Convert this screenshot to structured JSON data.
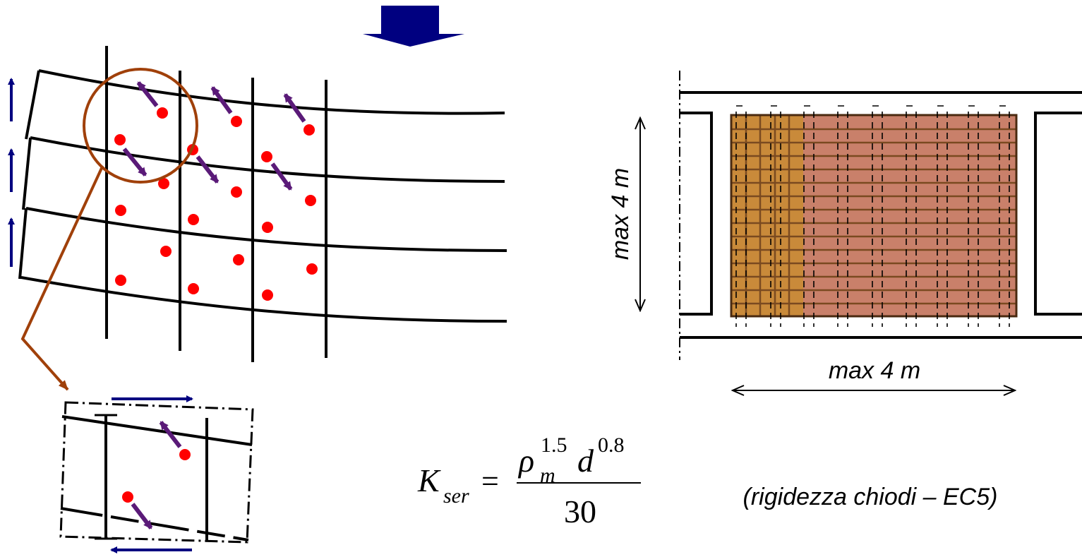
{
  "labels": {
    "height_dimension": "max 4 m",
    "width_dimension": "max 4 m",
    "stiffness_note": "(rigidezza chiodi – EC5)"
  },
  "formula": {
    "lhs_symbol": "K",
    "lhs_subscript": "ser",
    "equals": "=",
    "rho": "ρ",
    "rho_subscript": "m",
    "rho_exponent": "1.5",
    "d": "d",
    "d_exponent": "0.8",
    "denominator": "30"
  },
  "colors": {
    "load_arrow": "#000080",
    "nail_dot": "#ff0000",
    "slip_arrow": "#5a1a78",
    "detail_circle": "#a0400a",
    "panel_light": "#c98a3a",
    "panel_dark": "#c9806a"
  }
}
